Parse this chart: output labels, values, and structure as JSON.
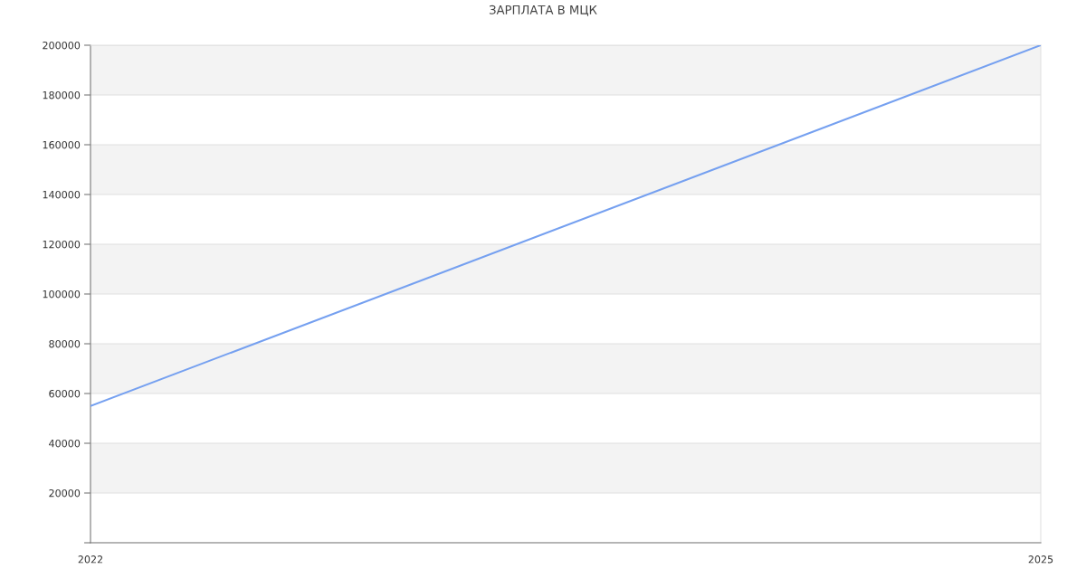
{
  "chart_data": {
    "type": "line",
    "title": "ЗАРПЛАТА В МЦК",
    "x": [
      2022,
      2025
    ],
    "series": [
      {
        "color": "#75a0f0",
        "values": [
          55000,
          200000
        ]
      }
    ],
    "xlim": [
      2022,
      2025
    ],
    "xticks": [
      2022,
      2025
    ],
    "ylim": [
      0,
      200000
    ],
    "yticks": [
      {
        "value": 0,
        "label": null
      },
      20000,
      40000,
      60000,
      80000,
      100000,
      120000,
      140000,
      160000,
      180000,
      200000
    ],
    "grid": "y",
    "marker": "none",
    "line_style": "solid",
    "bands": [
      {
        "axis": "y",
        "from": 20000,
        "to": 40000,
        "color": "#f3f3f3"
      },
      {
        "axis": "y",
        "from": 60000,
        "to": 80000,
        "color": "#f3f3f3"
      },
      {
        "axis": "y",
        "from": 100000,
        "to": 120000,
        "color": "#f3f3f3"
      },
      {
        "axis": "y",
        "from": 140000,
        "to": 160000,
        "color": "#f3f3f3"
      },
      {
        "axis": "y",
        "from": 180000,
        "to": 200000,
        "color": "#f3f3f3"
      }
    ]
  }
}
